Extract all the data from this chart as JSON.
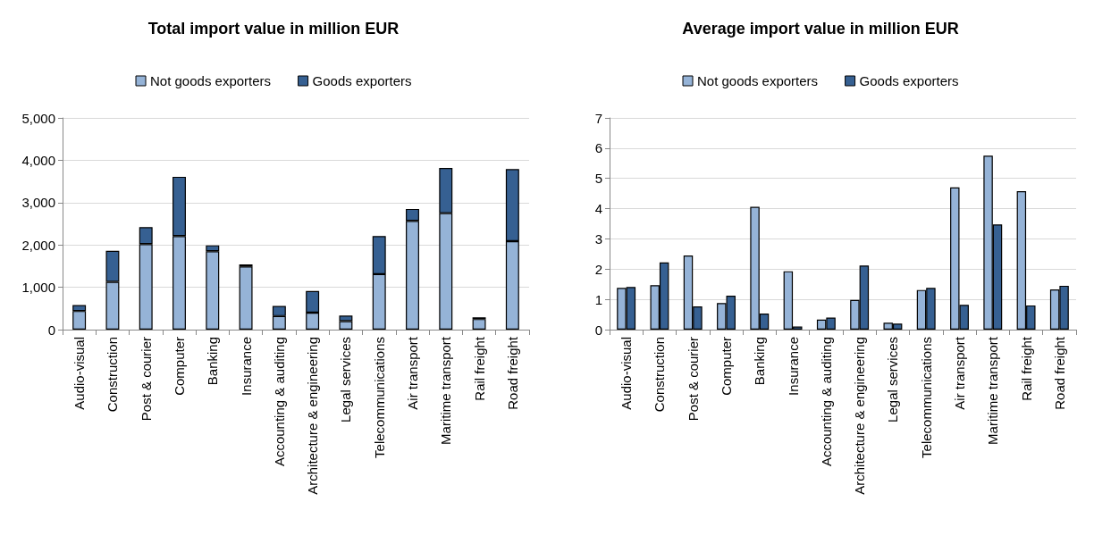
{
  "chart_data": [
    {
      "type": "bar",
      "title": "Total import value in million EUR",
      "stacked": true,
      "grid": "y",
      "legend": "top",
      "categories": [
        "Audio-visual",
        "Construction",
        "Post & courier",
        "Computer",
        "Banking",
        "Insurance",
        "Accounting & auditing",
        "Architecture & engineering",
        "Legal services",
        "Telecommunications",
        "Air transport",
        "Maritime transport",
        "Rail freight",
        "Road freight"
      ],
      "series": [
        {
          "name": "Not goods exporters",
          "color": "#95b3d7",
          "values": [
            440,
            1130,
            2020,
            2210,
            1850,
            1490,
            320,
            400,
            200,
            1310,
            2570,
            2750,
            250,
            2090
          ]
        },
        {
          "name": "Goods exporters",
          "color": "#366092",
          "values": [
            140,
            730,
            400,
            1400,
            140,
            50,
            240,
            510,
            130,
            900,
            280,
            1070,
            40,
            1700
          ]
        }
      ],
      "ylim": [
        0,
        5000
      ],
      "yticks": [
        {
          "value": 0,
          "label": "0"
        },
        {
          "value": 1000,
          "label": "1,000"
        },
        {
          "value": 2000,
          "label": "2,000"
        },
        {
          "value": 3000,
          "label": "3,000"
        },
        {
          "value": 4000,
          "label": "4,000"
        },
        {
          "value": 5000,
          "label": "5,000"
        }
      ]
    },
    {
      "type": "bar",
      "title": "Average import value in million EUR",
      "grid": "y",
      "legend": "top",
      "categories": [
        "Audio-visual",
        "Construction",
        "Post & courier",
        "Computer",
        "Banking",
        "Insurance",
        "Accounting & auditing",
        "Architecture & engineering",
        "Legal services",
        "Telecommunications",
        "Air transport",
        "Maritime transport",
        "Rail freight",
        "Road freight"
      ],
      "series": [
        {
          "name": "Not goods exporters",
          "color": "#95b3d7",
          "values": [
            1.38,
            1.47,
            2.45,
            0.88,
            4.06,
            1.93,
            0.33,
            0.98,
            0.23,
            1.31,
            4.7,
            5.75,
            4.58,
            1.33
          ]
        },
        {
          "name": "Goods exporters",
          "color": "#366092",
          "values": [
            1.41,
            2.22,
            0.77,
            1.12,
            0.53,
            0.1,
            0.4,
            2.12,
            0.2,
            1.38,
            0.82,
            3.48,
            0.8,
            1.45
          ]
        }
      ],
      "ylim": [
        0,
        7
      ],
      "yticks": [
        0,
        1,
        2,
        3,
        4,
        5,
        6,
        7
      ]
    }
  ]
}
